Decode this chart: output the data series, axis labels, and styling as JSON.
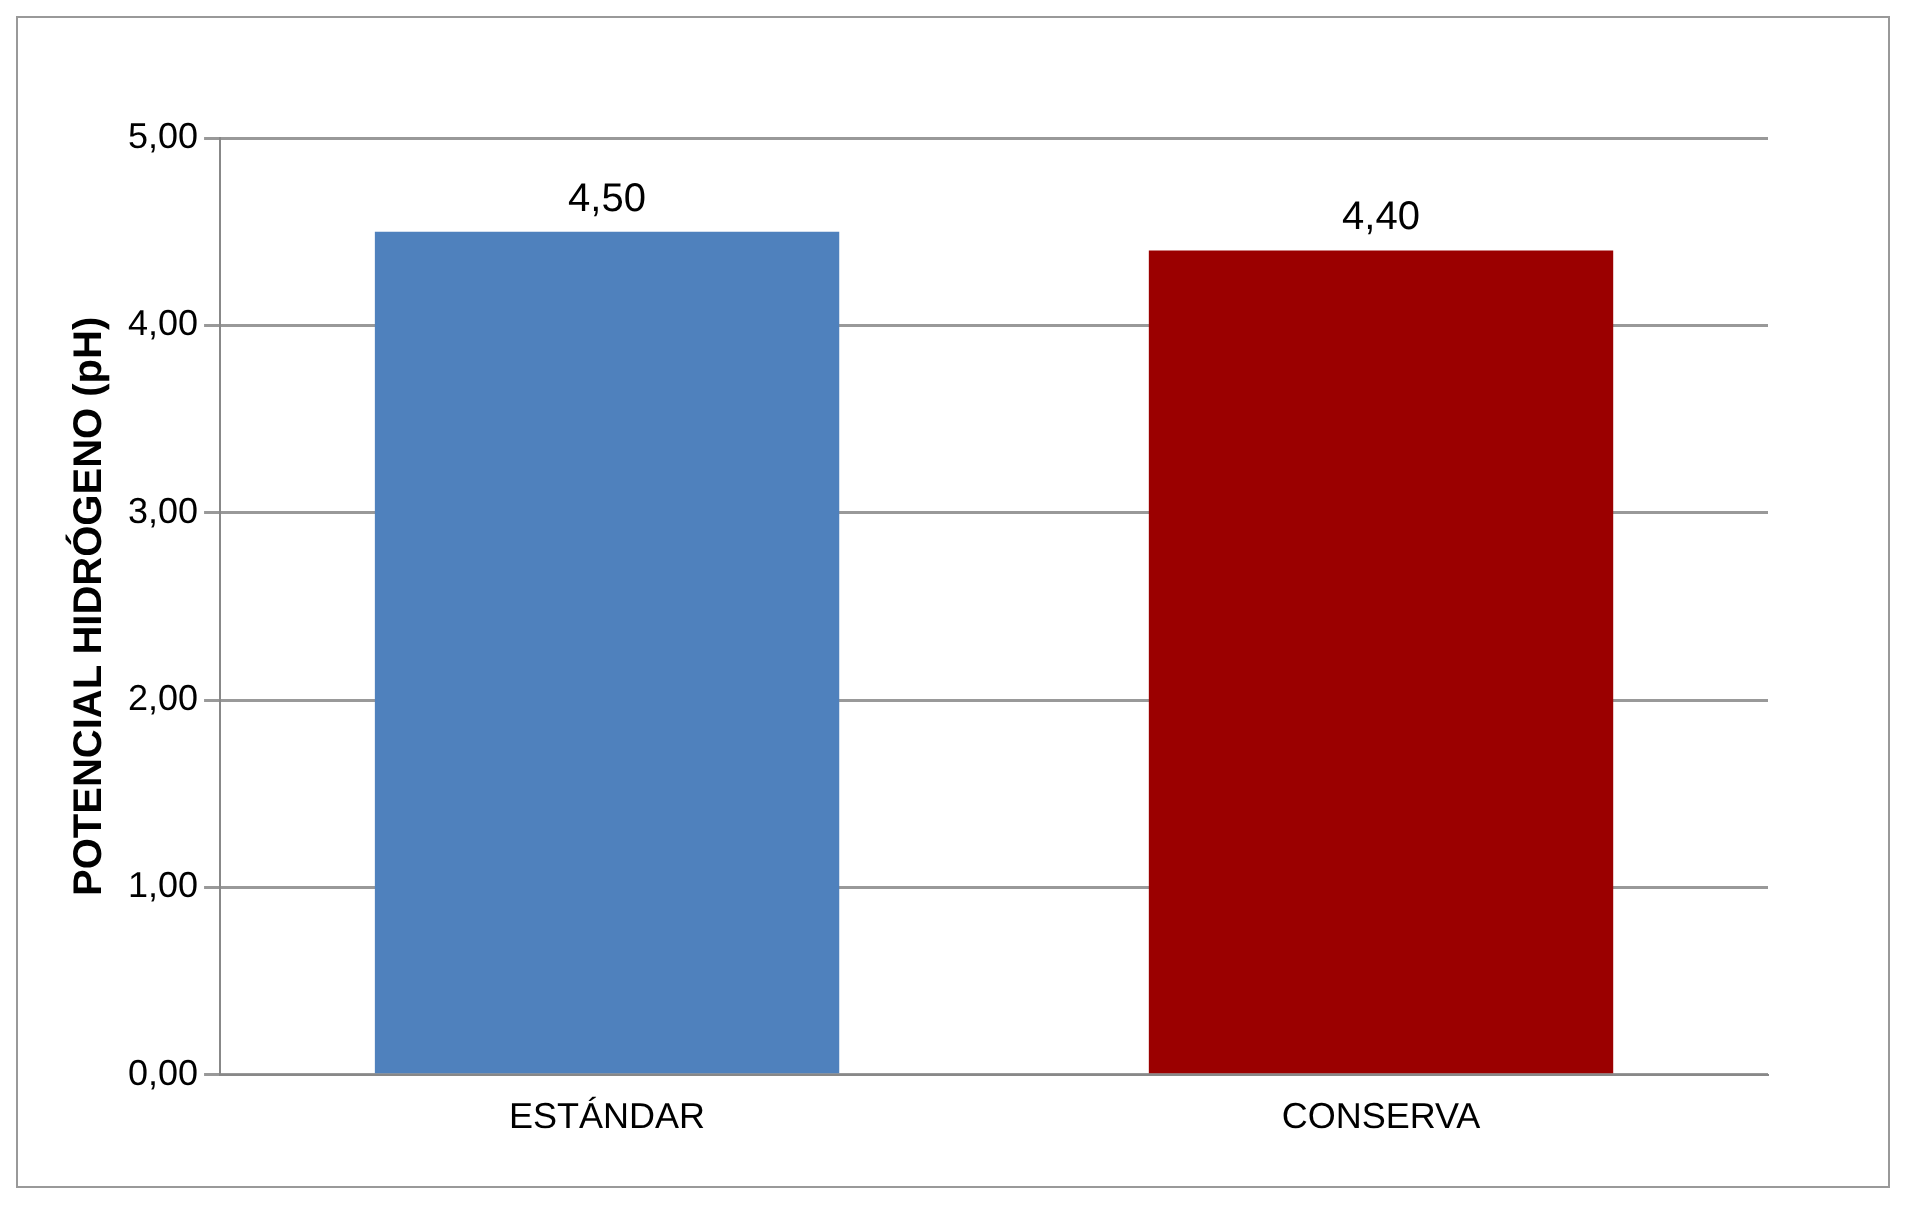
{
  "chart_data": {
    "type": "bar",
    "ylabel": "POTENCIAL HIDRÓGENO (pH)",
    "categories": [
      "ESTÁNDAR",
      "CONSERVA"
    ],
    "values": [
      4.5,
      4.4
    ],
    "colors": [
      "#4f81bd",
      "#9b0000"
    ],
    "value_labels": [
      "4,50",
      "4,40"
    ],
    "ylim": [
      0,
      5
    ],
    "yticks": [
      {
        "value": 0,
        "label": "0,00"
      },
      {
        "value": 1,
        "label": "1,00"
      },
      {
        "value": 2,
        "label": "2,00"
      },
      {
        "value": 3,
        "label": "3,00"
      },
      {
        "value": 4,
        "label": "4,00"
      },
      {
        "value": 5,
        "label": "5,00"
      }
    ],
    "grid": "y",
    "legend": false
  }
}
